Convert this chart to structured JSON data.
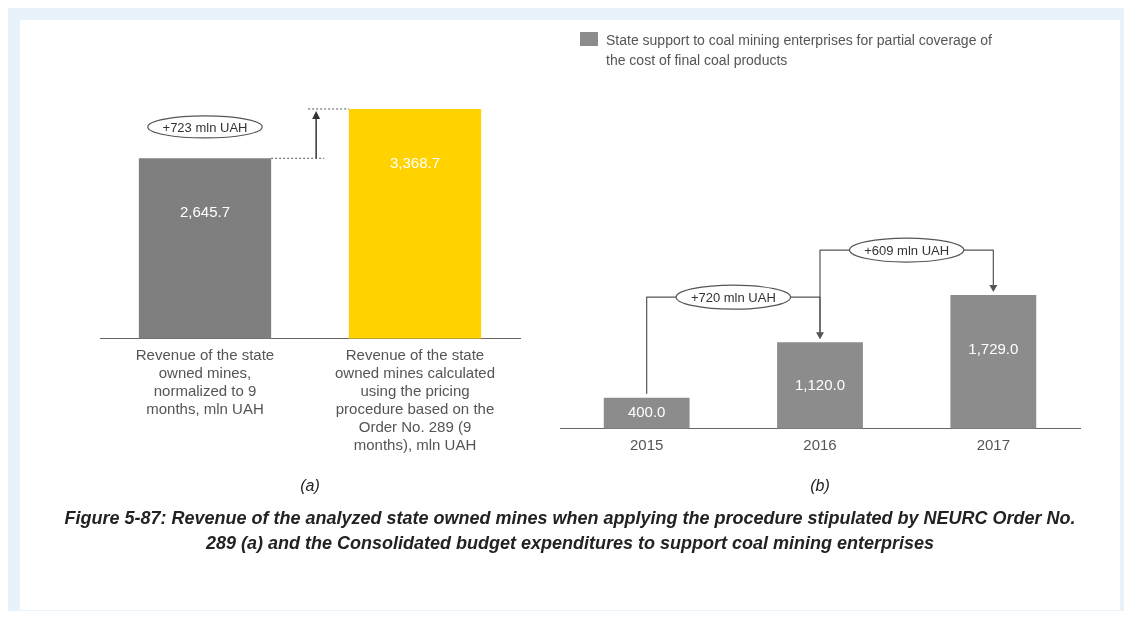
{
  "chart_data": [
    {
      "type": "bar",
      "xlabel": "(a)",
      "categories": [
        "Revenue of the state owned mines, normalized to 9 months, mln UAH",
        "Revenue of the state owned mines calculated using the pricing procedure based on the Order No. 289 (9 months), mln UAH"
      ],
      "values": [
        2645.7,
        3368.7
      ],
      "colors": [
        "#7f7f7f",
        "#ffd200"
      ],
      "value_labels": [
        "2,645.7",
        "3,368.7"
      ],
      "annotations": [
        "+723 mln UAH"
      ],
      "grid": false,
      "legend": false
    },
    {
      "type": "bar",
      "xlabel": "(b)",
      "categories": [
        "2015",
        "2016",
        "2017"
      ],
      "series": [
        {
          "name": "State support to coal mining enterprises for partial coverage of the cost of final coal products",
          "color": "#8c8c8c",
          "values": [
            400.0,
            1120.0,
            1729.0
          ],
          "value_labels": [
            "400.0",
            "1,120.0",
            "1,729.0"
          ]
        }
      ],
      "annotations": [
        "+720 mln UAH",
        "+609 mln UAH"
      ],
      "grid": false,
      "legend": "top left"
    },
    {
      "type": "other",
      "title": "Figure 5-87: Revenue of the analyzed state owned mines when applying the procedure stipulated by NEURC Order No. 289 (a) and the Consolidated budget expenditures to support coal mining enterprises"
    }
  ]
}
